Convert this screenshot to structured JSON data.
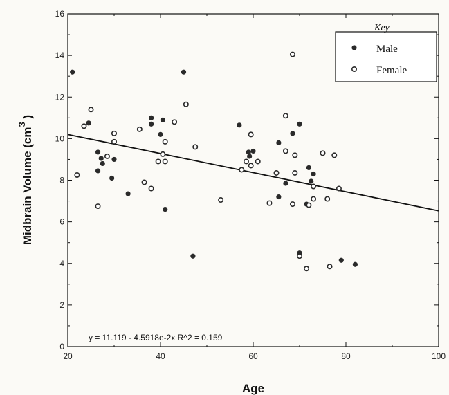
{
  "chart_data": {
    "type": "scatter",
    "xlabel": "Age",
    "ylabel_main": "Midbrain Volume (cm",
    "ylabel_sup": "3",
    "ylabel_close": " )",
    "xlim": [
      20,
      100
    ],
    "ylim": [
      0,
      16
    ],
    "xticks": [
      20,
      40,
      60,
      80,
      100
    ],
    "yticks": [
      0,
      2,
      4,
      6,
      8,
      10,
      12,
      14,
      16
    ],
    "grid": false,
    "legend": {
      "title": "Key",
      "placement": "top-right",
      "entries": [
        "Male",
        "Female"
      ]
    },
    "series": [
      {
        "name": "Male",
        "marker": "filled-circle",
        "x": [
          21,
          24.5,
          26.5,
          27.2,
          26.5,
          27.5,
          30,
          29.5,
          33,
          38,
          38,
          40.5,
          40,
          41,
          45,
          47,
          57,
          59,
          59.2,
          60,
          65.5,
          67,
          65.5,
          68.5,
          70,
          72,
          73,
          72.5,
          70,
          71.5,
          79,
          82
        ],
        "y": [
          13.2,
          10.75,
          9.35,
          9.05,
          8.45,
          8.8,
          9.0,
          8.1,
          7.35,
          11.0,
          10.7,
          10.9,
          10.2,
          6.6,
          13.2,
          4.35,
          10.65,
          9.35,
          9.15,
          9.4,
          9.8,
          7.85,
          7.2,
          10.25,
          10.7,
          8.6,
          8.3,
          7.95,
          4.5,
          6.85,
          4.15,
          3.95
        ]
      },
      {
        "name": "Female",
        "marker": "open-circle",
        "x": [
          22,
          23.5,
          25,
          26.5,
          28.5,
          30,
          30,
          35.5,
          36.5,
          38,
          39.5,
          40.5,
          41,
          41,
          43,
          45.5,
          47.5,
          53,
          57.5,
          58.5,
          59.5,
          59.5,
          61,
          63.5,
          65,
          67,
          67,
          68.5,
          68.5,
          69,
          69,
          70,
          71.5,
          72,
          73,
          73,
          75,
          76,
          76.5,
          77.5,
          78.5
        ],
        "y": [
          8.25,
          10.6,
          11.4,
          6.75,
          9.15,
          10.25,
          9.85,
          10.45,
          7.9,
          7.6,
          8.9,
          9.25,
          9.85,
          8.9,
          10.8,
          11.65,
          9.6,
          7.05,
          8.5,
          8.9,
          8.7,
          10.2,
          8.9,
          6.9,
          8.35,
          9.4,
          11.1,
          6.85,
          14.05,
          9.2,
          8.35,
          4.35,
          3.75,
          6.8,
          7.7,
          7.1,
          9.3,
          7.1,
          3.85,
          9.2,
          7.6
        ]
      }
    ],
    "fit_line": {
      "intercept": 11.119,
      "slope": -0.045918,
      "x_range": [
        20,
        100
      ]
    },
    "annotation": "y = 11.119 - 4.5918e-2x    R^2 = 0.159"
  }
}
